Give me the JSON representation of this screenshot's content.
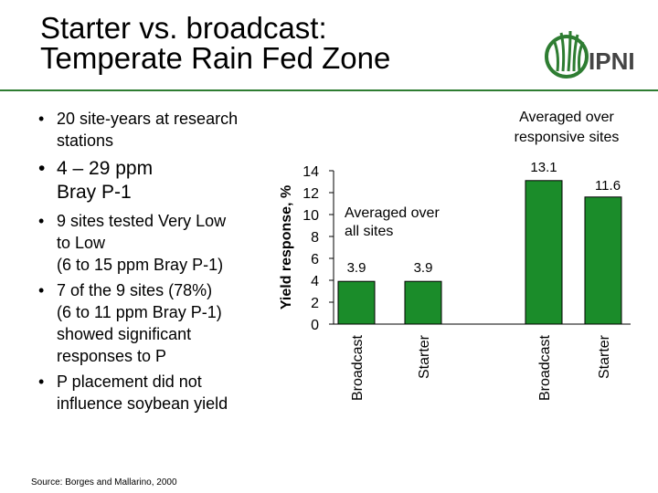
{
  "title": {
    "line1": "Starter vs. broadcast:",
    "line2": "Temperate Rain Fed Zone"
  },
  "logo": {
    "text": "IPNI",
    "accent_color": "#2e7d32"
  },
  "bullets": {
    "site_years": [
      "20 site-years at research",
      "stations"
    ],
    "bray": [
      "4 – 29 ppm",
      "Bray P-1"
    ],
    "sub": [
      [
        "9 sites tested Very Low",
        "to Low",
        "(6 to 15 ppm Bray P-1)"
      ],
      [
        "7 of the 9 sites (78%)",
        "(6 to 11 ppm Bray P-1)",
        "showed significant",
        "responses to P"
      ],
      [
        "P placement did not",
        "influence soybean yield"
      ]
    ]
  },
  "source": "Source: Borges and Mallarino, 2000",
  "notes": {
    "all_sites": [
      "Averaged over",
      "all sites"
    ],
    "responsive_sites": [
      "Averaged over",
      "responsive sites"
    ]
  },
  "chart_data": {
    "type": "bar",
    "ylabel": "Yield response, %",
    "ylim": [
      0,
      14
    ],
    "yticks": [
      0,
      2,
      4,
      6,
      8,
      10,
      12,
      14
    ],
    "bar_color": "#1b8c2a",
    "categories": [
      "Broadcast",
      "Starter",
      "Broadcast",
      "Starter"
    ],
    "values": [
      3.9,
      3.9,
      13.1,
      11.6
    ],
    "value_labels": [
      "3.9",
      "3.9",
      "13.1",
      "11.6"
    ],
    "groups": [
      "all sites",
      "all sites",
      "responsive sites",
      "responsive sites"
    ]
  }
}
